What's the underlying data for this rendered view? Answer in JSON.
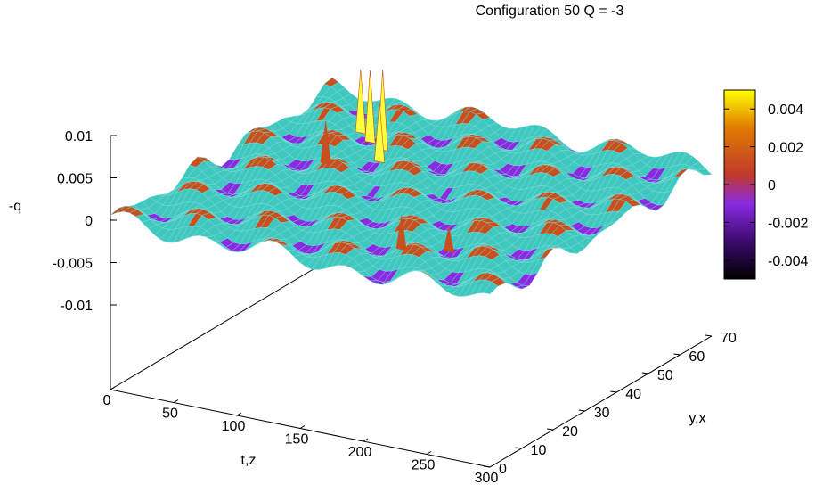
{
  "chart_data": {
    "type": "surface",
    "title": "Configuration  50  Q = -3",
    "zlabel": "-q",
    "xlabel": "t,z",
    "ylabel": "y,x",
    "x_ticks": [
      "0",
      "50",
      "100",
      "150",
      "200",
      "250",
      "300"
    ],
    "y_ticks": [
      "0",
      "10",
      "20",
      "30",
      "40",
      "50",
      "60",
      "70"
    ],
    "z_ticks": [
      "0.01",
      "0.005",
      "0",
      "-0.005",
      "-0.01"
    ],
    "xlim": [
      0,
      300
    ],
    "ylim": [
      0,
      70
    ],
    "zlim": [
      -0.01,
      0.01
    ],
    "colorbar": {
      "range": [
        -0.005,
        0.005
      ],
      "ticks": [
        "0.004",
        "0.002",
        "0",
        "-0.002",
        "-0.004"
      ],
      "colors": [
        "#000000",
        "#3b0a6e",
        "#8a2be2",
        "#c0392b",
        "#e07b00",
        "#ffff00"
      ]
    },
    "surface_colors": {
      "mesh": "#40c8c0",
      "low": "#8a2be2",
      "high": "#c8501e",
      "peak": "#ffff40"
    },
    "peaks": [
      {
        "x": 60,
        "y": 55,
        "value": 0.0075
      },
      {
        "x": 75,
        "y": 52,
        "value": 0.0085
      },
      {
        "x": 90,
        "y": 50,
        "value": 0.0095
      },
      {
        "x": 100,
        "y": 45,
        "value": 0.007
      },
      {
        "x": 70,
        "y": 40,
        "value": 0.005
      },
      {
        "x": 200,
        "y": 12,
        "value": 0.004
      },
      {
        "x": 230,
        "y": 15,
        "value": 0.003
      }
    ]
  }
}
